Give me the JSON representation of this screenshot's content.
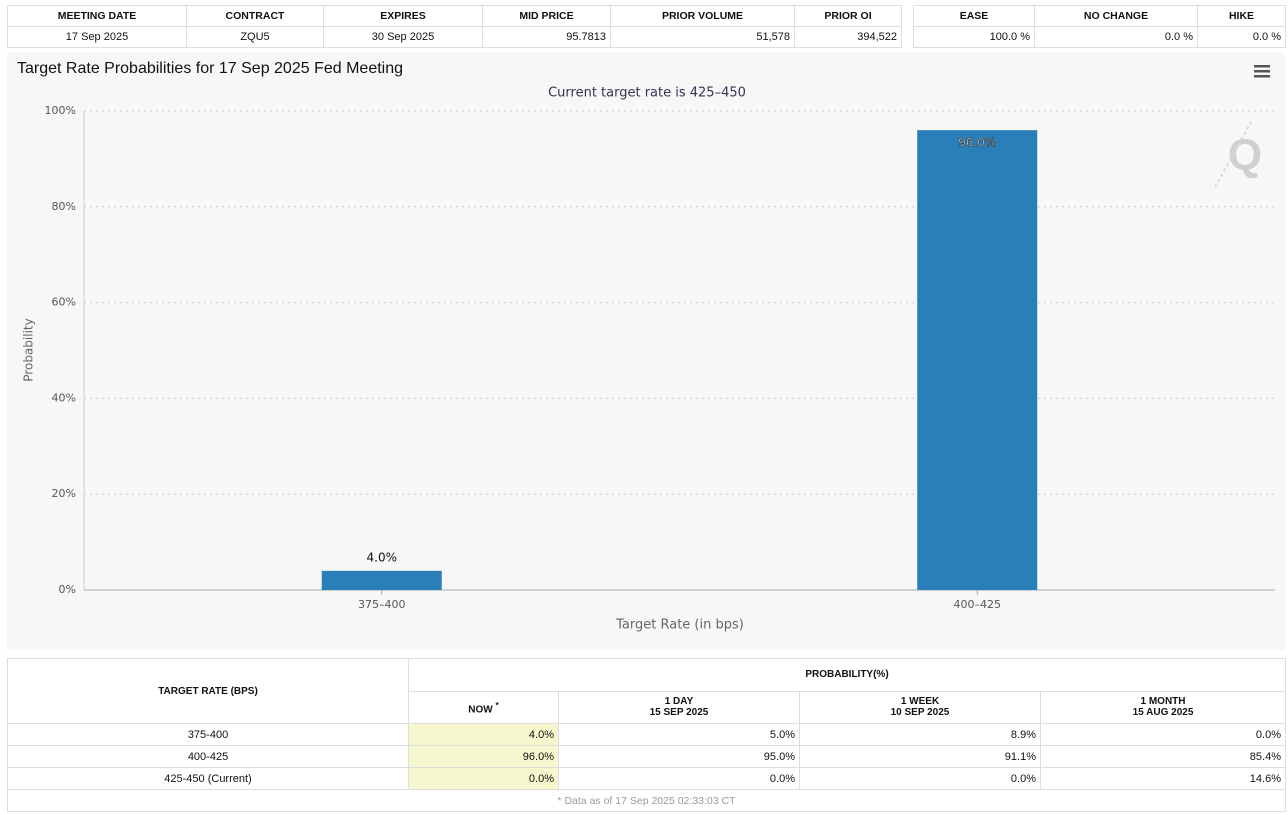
{
  "contract_table": {
    "headers": [
      "MEETING DATE",
      "CONTRACT",
      "EXPIRES",
      "MID PRICE",
      "PRIOR VOLUME",
      "PRIOR OI"
    ],
    "row": [
      "17 Sep 2025",
      "ZQU5",
      "30 Sep 2025",
      "95.7813",
      "51,578",
      "394,522"
    ]
  },
  "outcome_table": {
    "headers": [
      "EASE",
      "NO CHANGE",
      "HIKE"
    ],
    "row": [
      "100.0 %",
      "0.0 %",
      "0.0 %"
    ]
  },
  "chart_data": {
    "type": "bar",
    "title": "Target Rate Probabilities for 17 Sep 2025 Fed Meeting",
    "subtitle": "Current target rate is 425–450",
    "x_label": "Target Rate (in bps)",
    "y_label": "Probability",
    "categories": [
      "375–400",
      "400–425"
    ],
    "values": [
      4.0,
      96.0
    ],
    "value_labels": [
      "4.0%",
      "96.0%"
    ],
    "color": "#2a7fb8",
    "ylim": [
      0,
      100
    ],
    "yticks": [
      {
        "value": 0,
        "label": "0%"
      },
      {
        "value": 20,
        "label": "20%"
      },
      {
        "value": 40,
        "label": "40%"
      },
      {
        "value": 60,
        "label": "60%"
      },
      {
        "value": 80,
        "label": "80%"
      },
      {
        "value": 100,
        "label": "100%"
      }
    ],
    "grid": true
  },
  "probability_table": {
    "row_header": "TARGET RATE (BPS)",
    "group_header": "PROBABILITY(%)",
    "columns": [
      {
        "label": "NOW",
        "mark": "*"
      },
      {
        "label": "1 DAY",
        "date": "15 SEP 2025"
      },
      {
        "label": "1 WEEK",
        "date": "10 SEP 2025"
      },
      {
        "label": "1 MONTH",
        "date": "15 AUG 2025"
      }
    ],
    "rows": [
      [
        "375-400",
        "4.0%",
        "5.0%",
        "8.9%",
        "0.0%"
      ],
      [
        "400-425",
        "96.0%",
        "95.0%",
        "91.1%",
        "85.4%"
      ],
      [
        "425-450 (Current)",
        "0.0%",
        "0.0%",
        "0.0%",
        "14.6%"
      ]
    ],
    "footnote": "* Data as of 17 Sep 2025 02:33:03 CT"
  }
}
